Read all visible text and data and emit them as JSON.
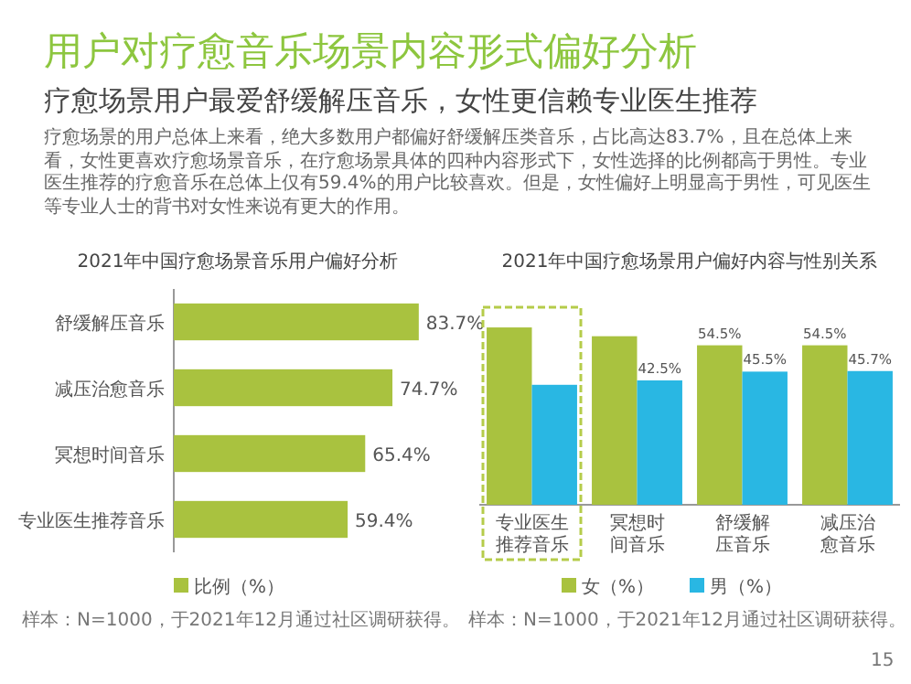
{
  "chart_data": [
    {
      "type": "bar",
      "orientation": "horizontal",
      "title": "2021年中国疗愈场景音乐用户偏好分析",
      "categories": [
        "舒缓解压音乐",
        "减压治愈音乐",
        "冥想时间音乐",
        "专业医生推荐音乐"
      ],
      "series": [
        {
          "name": "比例（%）",
          "color": "#a9c23f",
          "values": [
            83.7,
            74.7,
            65.4,
            59.4
          ],
          "value_labels": [
            "83.7%",
            "74.7%",
            "65.4%",
            "59.4%"
          ]
        }
      ],
      "legend": "bottom",
      "annotations": [
        "用户对疗愈音乐场景内容形式偏好分析",
        "疗愈场景用户最爱舒缓解压音乐，女性更信赖专业医生推荐",
        "疗愈场景的用户总体上来看，绝大多数用户都偏好舒缓解压类音乐，占比高达83.7%，且在总体上来看，女性更喜欢疗愈场景音乐，在疗愈场景具体的四种内容形式下，女性选择的比例都高于男性。专业医生推荐的疗愈音乐在总体上仅有59.4%的用户比较喜欢。但是，女性偏好上明显高于男性，可见医生等专业人士的背书对女性来说有更大的作用。",
        "样本：N=1000，于2021年12月通过社区调研获得。"
      ]
    },
    {
      "type": "bar",
      "title": "2021年中国疗愈场景用户偏好内容与性别关系",
      "categories": [
        "专业医生推荐音乐",
        "冥想时间音乐",
        "舒缓解压音乐",
        "减压治愈音乐"
      ],
      "series": [
        {
          "name": "女（%）",
          "color": "#a9c23f",
          "values": [
            60.6,
            57.6,
            54.5,
            54.5
          ],
          "value_labels": [
            null,
            null,
            "54.5%",
            "54.5%"
          ]
        },
        {
          "name": "男（%）",
          "color": "#29b7e3",
          "values": [
            41.0,
            42.5,
            45.5,
            45.7
          ],
          "value_labels": [
            null,
            "42.5%",
            "45.5%",
            "45.7%"
          ]
        }
      ],
      "legend": "bottom",
      "annotations": [
        "样本：N=1000，于2021年12月通过社区调研获得。",
        "15"
      ]
    }
  ]
}
